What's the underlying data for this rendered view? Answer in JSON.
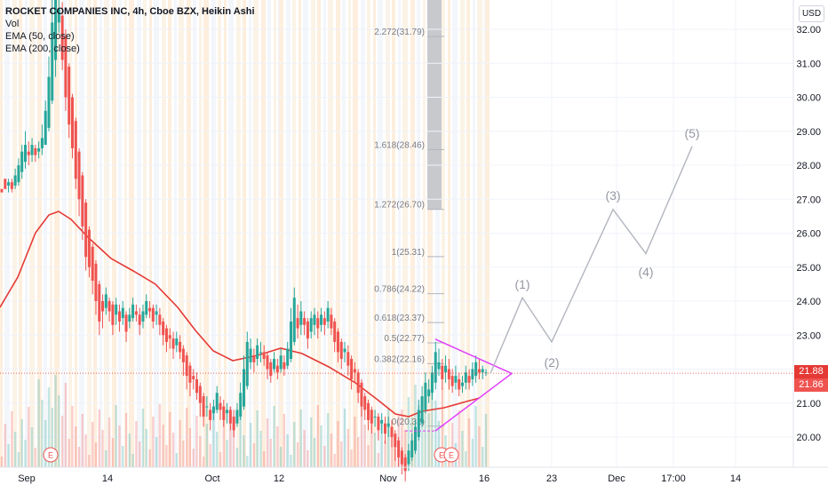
{
  "legend": {
    "symbol": "ROCKET COMPANIES INC, 4h, Cboe BZX, Heikin Ashi",
    "line2": "Vol",
    "line3": "EMA (50, close)",
    "line4": "EMA (200, close)"
  },
  "currency": "USD",
  "colors": {
    "up": "#26a69a",
    "down": "#ef5350",
    "ema": "#e53935",
    "triangle": "#e040fb",
    "fib": "#b2b5be",
    "wave": "#b2b5be"
  },
  "chart_data": {
    "type": "candlestick",
    "y_axis": {
      "min": 19.5,
      "max": 32.5,
      "ticks": [
        "20.00",
        "21.00",
        "22.00",
        "23.00",
        "24.00",
        "25.00",
        "26.00",
        "27.00",
        "28.00",
        "29.00",
        "30.00",
        "31.00",
        "32.00"
      ]
    },
    "x_axis": {
      "ticks": [
        "Sep",
        "14",
        "Oct",
        "12",
        "Nov",
        "16",
        "23",
        "Dec",
        "17:00",
        "14"
      ]
    },
    "last_price": "21.88",
    "second_price": "21.86",
    "fib_levels": [
      {
        "label": "2.272(31.79)",
        "value": 31.79
      },
      {
        "label": "1.618(28.46)",
        "value": 28.46
      },
      {
        "label": "1.272(26.70)",
        "value": 26.7
      },
      {
        "label": "1(25.31)",
        "value": 25.31
      },
      {
        "label": "0.786(24.22)",
        "value": 24.22
      },
      {
        "label": "0.618(23.37)",
        "value": 23.37
      },
      {
        "label": "0.5(22.77)",
        "value": 22.77
      },
      {
        "label": "0.382(22.16)",
        "value": 22.16
      },
      {
        "label": "0(20.32)",
        "value": 20.32
      }
    ],
    "wave_labels": [
      "(1)",
      "(2)",
      "(3)",
      "(4)",
      "(5)"
    ],
    "wave_points": [
      {
        "date": "Nov 16",
        "price": 21.87
      },
      {
        "date": "Nov 19",
        "price": 24.1
      },
      {
        "date": "Nov 23",
        "price": 22.8
      },
      {
        "date": "Dec 1",
        "price": 26.7
      },
      {
        "date": "Dec 5",
        "price": 25.4
      },
      {
        "date": "Dec 10",
        "price": 28.55
      }
    ],
    "earnings_markers": [
      "E",
      "E",
      "E"
    ],
    "candles": [
      [
        27.3,
        27.2,
        27.2,
        27.3
      ],
      [
        27.6,
        27.3,
        27.3,
        27.6
      ],
      [
        27.4,
        27.5,
        27.2,
        27.6
      ],
      [
        27.5,
        27.3,
        27.2,
        27.6
      ],
      [
        27.4,
        27.7,
        27.3,
        27.9
      ],
      [
        27.5,
        28.0,
        27.4,
        28.2
      ],
      [
        27.8,
        28.4,
        27.6,
        28.6
      ],
      [
        28.1,
        28.6,
        27.9,
        29.0
      ],
      [
        28.4,
        28.3,
        28.0,
        28.7
      ],
      [
        28.3,
        28.6,
        28.1,
        28.8
      ],
      [
        28.5,
        28.3,
        28.1,
        28.6
      ],
      [
        28.4,
        28.5,
        28.2,
        28.7
      ],
      [
        28.5,
        28.8,
        28.3,
        29.2
      ],
      [
        28.6,
        29.6,
        28.6,
        29.9
      ],
      [
        29.1,
        30.6,
        29.0,
        31.2
      ],
      [
        29.9,
        32.2,
        29.8,
        33.0
      ],
      [
        31.1,
        33.2,
        30.6,
        33.5
      ],
      [
        32.2,
        32.6,
        31.9,
        33.4
      ],
      [
        32.4,
        31.1,
        30.8,
        32.8
      ],
      [
        31.8,
        30.0,
        29.6,
        32.0
      ],
      [
        30.9,
        29.2,
        28.8,
        31.0
      ],
      [
        30.0,
        28.5,
        28.2,
        30.1
      ],
      [
        29.3,
        27.6,
        27.3,
        29.4
      ],
      [
        28.4,
        27.0,
        26.5,
        28.5
      ],
      [
        27.7,
        26.2,
        25.8,
        27.8
      ],
      [
        26.9,
        25.3,
        24.9,
        27.0
      ],
      [
        26.1,
        25.0,
        24.7,
        26.2
      ],
      [
        25.6,
        24.6,
        24.2,
        25.7
      ],
      [
        25.1,
        24.0,
        23.6,
        25.2
      ],
      [
        24.5,
        23.4,
        23.0,
        24.6
      ],
      [
        24.0,
        23.7,
        23.2,
        24.2
      ],
      [
        23.8,
        24.2,
        23.6,
        24.4
      ],
      [
        24.0,
        23.7,
        23.4,
        24.1
      ],
      [
        23.9,
        23.3,
        23.0,
        24.0
      ],
      [
        23.6,
        23.9,
        23.3,
        24.1
      ],
      [
        23.7,
        23.4,
        23.1,
        23.9
      ],
      [
        23.5,
        23.8,
        23.3,
        24.0
      ],
      [
        23.6,
        23.1,
        22.8,
        23.7
      ],
      [
        23.4,
        23.6,
        23.2,
        23.8
      ],
      [
        23.5,
        23.9,
        23.4,
        24.1
      ],
      [
        23.7,
        23.6,
        23.4,
        23.9
      ],
      [
        23.6,
        23.3,
        23.0,
        23.8
      ],
      [
        23.4,
        23.7,
        23.2,
        23.9
      ],
      [
        23.6,
        24.0,
        23.5,
        24.2
      ],
      [
        23.8,
        23.7,
        23.5,
        24.0
      ],
      [
        23.8,
        23.4,
        23.2,
        23.9
      ],
      [
        23.6,
        23.7,
        23.3,
        23.9
      ],
      [
        23.6,
        23.3,
        23.0,
        23.8
      ],
      [
        23.4,
        23.0,
        22.7,
        23.5
      ],
      [
        23.2,
        22.8,
        22.5,
        23.3
      ],
      [
        23.0,
        22.9,
        22.6,
        23.2
      ],
      [
        22.9,
        22.6,
        22.3,
        23.1
      ],
      [
        22.7,
        22.9,
        22.5,
        23.1
      ],
      [
        22.8,
        22.5,
        22.3,
        23.0
      ],
      [
        22.6,
        22.2,
        21.8,
        22.7
      ],
      [
        22.4,
        21.8,
        21.4,
        22.5
      ],
      [
        22.1,
        21.6,
        21.2,
        22.2
      ],
      [
        21.8,
        21.7,
        21.4,
        22.0
      ],
      [
        21.7,
        21.3,
        21.1,
        21.9
      ],
      [
        21.5,
        21.0,
        20.6,
        21.6
      ],
      [
        21.2,
        20.6,
        20.3,
        21.3
      ],
      [
        20.9,
        20.9,
        20.6,
        21.2
      ],
      [
        20.8,
        20.5,
        20.2,
        21.0
      ],
      [
        20.7,
        20.9,
        20.5,
        21.1
      ],
      [
        20.8,
        21.3,
        20.7,
        21.5
      ],
      [
        21.0,
        20.8,
        20.5,
        21.2
      ],
      [
        20.9,
        20.5,
        20.3,
        21.1
      ],
      [
        20.7,
        20.8,
        20.4,
        21.0
      ],
      [
        20.8,
        20.4,
        20.2,
        20.9
      ],
      [
        20.6,
        20.2,
        20.0,
        20.8
      ],
      [
        20.4,
        20.8,
        20.3,
        21.0
      ],
      [
        20.6,
        21.3,
        20.5,
        21.6
      ],
      [
        20.9,
        22.0,
        20.8,
        22.4
      ],
      [
        21.5,
        22.8,
        21.4,
        23.1
      ],
      [
        22.2,
        22.6,
        22.0,
        22.9
      ],
      [
        22.4,
        22.2,
        21.9,
        22.6
      ],
      [
        22.3,
        22.7,
        22.1,
        22.9
      ],
      [
        22.5,
        22.5,
        22.2,
        22.8
      ],
      [
        22.5,
        22.3,
        22.1,
        22.7
      ],
      [
        22.4,
        22.0,
        21.7,
        22.5
      ],
      [
        22.2,
        21.8,
        21.6,
        22.3
      ],
      [
        22.0,
        22.3,
        21.9,
        22.5
      ],
      [
        22.1,
        21.9,
        21.7,
        22.3
      ],
      [
        22.0,
        22.4,
        21.9,
        22.6
      ],
      [
        22.2,
        22.0,
        21.8,
        22.4
      ],
      [
        22.1,
        22.6,
        22.0,
        22.8
      ],
      [
        22.3,
        23.4,
        22.2,
        23.8
      ],
      [
        22.8,
        24.1,
        22.7,
        24.4
      ],
      [
        23.5,
        23.2,
        22.9,
        23.9
      ],
      [
        23.3,
        23.7,
        23.0,
        24.0
      ],
      [
        23.5,
        23.3,
        23.0,
        23.7
      ],
      [
        23.4,
        22.9,
        22.6,
        23.5
      ],
      [
        23.1,
        23.5,
        22.9,
        23.7
      ],
      [
        23.3,
        23.6,
        23.0,
        23.8
      ],
      [
        23.5,
        23.2,
        22.9,
        23.7
      ],
      [
        23.3,
        23.6,
        23.1,
        23.8
      ],
      [
        23.5,
        23.3,
        23.0,
        23.7
      ],
      [
        23.4,
        23.8,
        23.2,
        24.0
      ],
      [
        23.6,
        23.2,
        23.0,
        23.8
      ],
      [
        23.4,
        22.8,
        22.5,
        23.5
      ],
      [
        23.1,
        22.5,
        22.2,
        23.2
      ],
      [
        22.8,
        22.3,
        22.0,
        22.9
      ],
      [
        22.5,
        22.6,
        22.2,
        22.8
      ],
      [
        22.5,
        22.1,
        21.8,
        22.7
      ],
      [
        22.3,
        21.7,
        21.4,
        22.4
      ],
      [
        22.0,
        21.9,
        21.6,
        22.2
      ],
      [
        21.9,
        21.3,
        21.0,
        22.0
      ],
      [
        21.6,
        20.9,
        20.6,
        21.7
      ],
      [
        21.2,
        20.8,
        20.5,
        21.3
      ],
      [
        21.0,
        20.5,
        20.2,
        21.1
      ],
      [
        20.8,
        20.4,
        20.1,
        20.9
      ],
      [
        20.6,
        20.6,
        20.3,
        20.8
      ],
      [
        20.6,
        20.2,
        19.9,
        20.7
      ],
      [
        20.4,
        20.5,
        20.1,
        20.7
      ],
      [
        20.4,
        20.1,
        19.8,
        20.6
      ],
      [
        20.3,
        20.4,
        20.0,
        20.6
      ],
      [
        20.3,
        20.0,
        19.7,
        20.5
      ],
      [
        20.1,
        19.7,
        19.3,
        20.2
      ],
      [
        19.9,
        19.4,
        19.1,
        20.0
      ],
      [
        19.6,
        19.2,
        18.9,
        19.7
      ],
      [
        19.4,
        19.0,
        18.7,
        19.5
      ],
      [
        19.2,
        19.6,
        19.0,
        19.8
      ],
      [
        19.4,
        19.9,
        19.3,
        20.1
      ],
      [
        19.6,
        20.3,
        19.5,
        20.5
      ],
      [
        20.0,
        20.8,
        19.9,
        21.1
      ],
      [
        20.4,
        21.2,
        20.3,
        21.5
      ],
      [
        20.8,
        21.6,
        20.7,
        21.9
      ],
      [
        21.2,
        21.4,
        21.0,
        21.7
      ],
      [
        21.3,
        21.9,
        21.1,
        22.1
      ],
      [
        21.6,
        22.5,
        21.4,
        22.8
      ],
      [
        22.0,
        22.2,
        21.8,
        22.6
      ],
      [
        22.1,
        21.7,
        21.4,
        22.3
      ],
      [
        21.9,
        22.1,
        21.6,
        22.4
      ],
      [
        22.0,
        21.7,
        21.4,
        22.3
      ],
      [
        21.8,
        21.5,
        21.3,
        22.0
      ],
      [
        21.6,
        21.8,
        21.4,
        22.1
      ],
      [
        21.7,
        21.4,
        21.2,
        21.9
      ],
      [
        21.5,
        21.6,
        21.3,
        21.8
      ],
      [
        21.6,
        21.9,
        21.4,
        22.1
      ],
      [
        21.8,
        21.6,
        21.4,
        22.0
      ],
      [
        21.7,
        22.0,
        21.5,
        22.2
      ],
      [
        21.8,
        22.2,
        21.6,
        22.4
      ],
      [
        22.0,
        21.9,
        21.7,
        22.3
      ],
      [
        21.9,
        22.0,
        21.7,
        22.1
      ],
      [
        21.9,
        21.9,
        21.8,
        22.0
      ]
    ]
  }
}
